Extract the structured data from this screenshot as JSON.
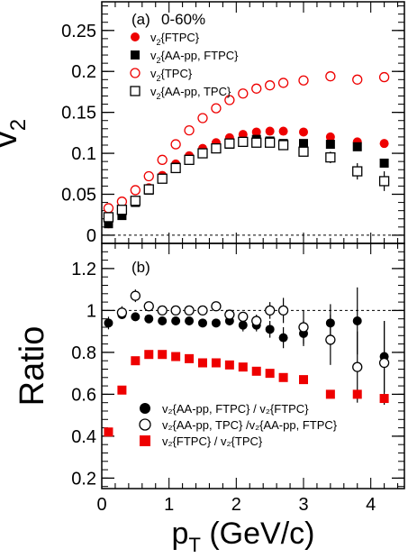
{
  "chart_data": [
    {
      "type": "scatter",
      "panel_label": "(a)",
      "centrality": "0-60%",
      "ylabel": "v",
      "ylabel_sub": "2",
      "xlim": [
        0,
        4.5
      ],
      "ylim": [
        -0.01,
        0.285
      ],
      "yticks": [
        "0",
        "0.05",
        "0.1",
        "0.15",
        "0.2",
        "0.25"
      ],
      "ytick_values": [
        0,
        0.05,
        0.1,
        0.15,
        0.2,
        0.25
      ],
      "reference_line": 0,
      "legend": [
        {
          "main": "v",
          "sub": "2",
          "rest": "{FTPC}"
        },
        {
          "main": "v",
          "sub": "2",
          "rest": "{AA-pp, FTPC}"
        },
        {
          "main": "v",
          "sub": "2",
          "rest": "{TPC}"
        },
        {
          "main": "v",
          "sub": "2",
          "rest": "{AA-pp, TPC}"
        }
      ],
      "series": [
        {
          "name": "v2{FTPC}",
          "marker": "circle-filled",
          "color": "#ee0000",
          "x": [
            0.1,
            0.3,
            0.5,
            0.7,
            0.9,
            1.1,
            1.3,
            1.5,
            1.7,
            1.9,
            2.1,
            2.3,
            2.5,
            2.7,
            3.0,
            3.4,
            3.8,
            4.2
          ],
          "y": [
            0.014,
            0.025,
            0.042,
            0.058,
            0.073,
            0.087,
            0.097,
            0.106,
            0.113,
            0.119,
            0.123,
            0.126,
            0.127,
            0.127,
            0.126,
            0.12,
            0.114,
            0.112
          ]
        },
        {
          "name": "v2{AA-pp, FTPC}",
          "marker": "square-filled",
          "color": "#000000",
          "x": [
            0.1,
            0.3,
            0.5,
            0.7,
            0.9,
            1.1,
            1.3,
            1.5,
            1.7,
            1.9,
            2.1,
            2.3,
            2.5,
            2.7,
            3.0,
            3.4,
            3.8,
            4.2
          ],
          "y": [
            0.014,
            0.024,
            0.04,
            0.055,
            0.069,
            0.083,
            0.092,
            0.1,
            0.106,
            0.111,
            0.114,
            0.117,
            0.115,
            0.112,
            0.112,
            0.111,
            0.108,
            0.088
          ]
        },
        {
          "name": "v2{TPC}",
          "marker": "circle-open",
          "color": "#ee0000",
          "x": [
            0.1,
            0.3,
            0.5,
            0.7,
            0.9,
            1.1,
            1.3,
            1.5,
            1.7,
            1.9,
            2.1,
            2.3,
            2.5,
            2.7,
            3.0,
            3.4,
            3.8,
            4.2
          ],
          "y": [
            0.033,
            0.041,
            0.055,
            0.072,
            0.092,
            0.111,
            0.128,
            0.143,
            0.155,
            0.165,
            0.173,
            0.179,
            0.183,
            0.186,
            0.189,
            0.194,
            0.19,
            0.193
          ]
        },
        {
          "name": "v2{AA-pp, TPC}",
          "marker": "square-open",
          "color": "#000000",
          "x": [
            0.1,
            0.3,
            0.5,
            0.7,
            0.9,
            1.1,
            1.3,
            1.5,
            1.7,
            1.9,
            2.1,
            2.3,
            2.5,
            2.7,
            3.0,
            3.4,
            3.8,
            4.2
          ],
          "y": [
            0.022,
            0.031,
            0.042,
            0.056,
            0.069,
            0.082,
            0.092,
            0.1,
            0.106,
            0.112,
            0.114,
            0.113,
            0.113,
            0.11,
            0.102,
            0.095,
            0.078,
            0.066
          ],
          "err": [
            0.002,
            0.002,
            0.002,
            0.002,
            0.002,
            0.002,
            0.002,
            0.002,
            0.002,
            0.002,
            0.003,
            0.003,
            0.003,
            0.004,
            0.005,
            0.007,
            0.01,
            0.012
          ]
        }
      ]
    },
    {
      "type": "scatter",
      "panel_label": "(b)",
      "ylabel": "Ratio",
      "xlabel": "p",
      "xlabel_sub": "T",
      "xlabel_rest": " (GeV/c)",
      "xlim": [
        0,
        4.5
      ],
      "ylim": [
        0.15,
        1.32
      ],
      "xticks": [
        "0",
        "1",
        "2",
        "3",
        "4"
      ],
      "xtick_values": [
        0,
        1,
        2,
        3,
        4
      ],
      "yticks": [
        "0.2",
        "0.4",
        "0.6",
        "0.8",
        "1",
        "1.2"
      ],
      "ytick_values": [
        0.2,
        0.4,
        0.6,
        0.8,
        1.0,
        1.2
      ],
      "reference_line": 1,
      "legend": [
        {
          "text": "v₂{AA-pp, FTPC} / v₂{FTPC}"
        },
        {
          "text": "v₂{AA-pp, TPC} /v₂{AA-pp, FTPC}"
        },
        {
          "text": "v₂{FTPC} / v₂{TPC}"
        }
      ],
      "series": [
        {
          "name": "v2{AA-pp, FTPC} / v2{FTPC}",
          "marker": "circle-filled",
          "color": "#000000",
          "x": [
            0.1,
            0.3,
            0.5,
            0.7,
            0.9,
            1.1,
            1.3,
            1.5,
            1.7,
            1.9,
            2.1,
            2.3,
            2.5,
            2.7,
            3.0,
            3.4,
            3.8,
            4.2
          ],
          "y": [
            0.94,
            0.98,
            0.97,
            0.96,
            0.95,
            0.95,
            0.95,
            0.94,
            0.94,
            0.95,
            0.93,
            0.93,
            0.91,
            0.87,
            0.89,
            0.94,
            0.95,
            0.78
          ],
          "err": [
            0.03,
            0.02,
            0.02,
            0.02,
            0.02,
            0.02,
            0.02,
            0.02,
            0.02,
            0.02,
            0.03,
            0.03,
            0.04,
            0.05,
            0.06,
            0.09,
            0.16,
            0.17
          ]
        },
        {
          "name": "v2{AA-pp, TPC} /v2{AA-pp, FTPC}",
          "marker": "circle-open",
          "color": "#000000",
          "x": [
            0.3,
            0.5,
            0.7,
            0.9,
            1.1,
            1.3,
            1.5,
            1.7,
            1.9,
            2.1,
            2.3,
            2.5,
            2.7,
            3.0,
            3.4,
            3.8,
            4.2
          ],
          "y": [
            0.99,
            1.07,
            1.02,
            1.0,
            1.0,
            1.0,
            1.0,
            1.02,
            0.98,
            0.97,
            0.95,
            1.0,
            1.0,
            0.92,
            0.86,
            0.73,
            0.75
          ],
          "err": [
            0.03,
            0.03,
            0.02,
            0.02,
            0.02,
            0.02,
            0.02,
            0.02,
            0.02,
            0.02,
            0.03,
            0.04,
            0.06,
            0.08,
            0.12,
            0.17,
            0.2
          ]
        },
        {
          "name": "v2{FTPC} / v2{TPC}",
          "marker": "square-filled",
          "color": "#ee0000",
          "x": [
            0.1,
            0.3,
            0.5,
            0.7,
            0.9,
            1.1,
            1.3,
            1.5,
            1.7,
            1.9,
            2.1,
            2.3,
            2.5,
            2.7,
            3.0,
            3.4,
            3.8,
            4.2
          ],
          "y": [
            0.42,
            0.62,
            0.76,
            0.79,
            0.79,
            0.78,
            0.77,
            0.75,
            0.75,
            0.74,
            0.73,
            0.71,
            0.7,
            0.68,
            0.67,
            0.6,
            0.6,
            0.58
          ]
        }
      ]
    }
  ]
}
